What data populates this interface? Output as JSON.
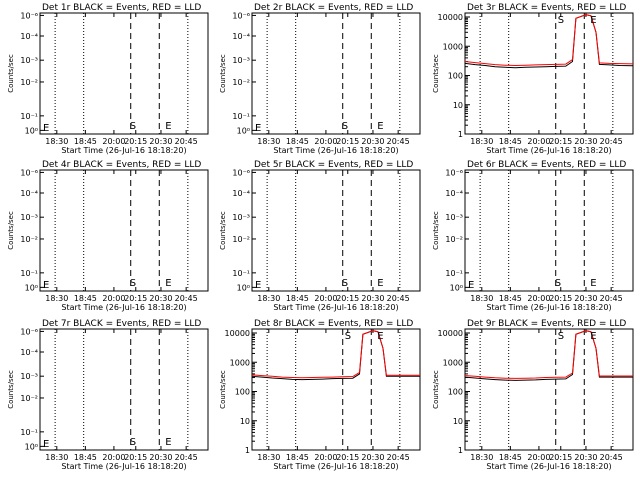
{
  "figure": {
    "panels": [
      {
        "title": "Det 1r BLACK = Events, RED = LLD",
        "state": "empty"
      },
      {
        "title": "Det 2r BLACK = Events, RED = LLD",
        "state": "empty"
      },
      {
        "title": "Det 3r BLACK = Events, RED = LLD",
        "state": "data"
      },
      {
        "title": "Det 4r BLACK = Events, RED = LLD",
        "state": "empty"
      },
      {
        "title": "Det 5r BLACK = Events, RED = LLD",
        "state": "empty"
      },
      {
        "title": "Det 6r BLACK = Events, RED = LLD",
        "state": "empty"
      },
      {
        "title": "Det 7r BLACK = Events, RED = LLD",
        "state": "empty"
      },
      {
        "title": "Det 8r BLACK = Events, RED = LLD",
        "state": "data"
      },
      {
        "title": "Det 9r BLACK = Events, RED = LLD",
        "state": "data"
      }
    ],
    "ylabel": "Counts/sec",
    "xlabel": "Start Time (26-Jul-16 18:18:20)",
    "x_ticks": [
      "18:30",
      "18:45",
      "20:00",
      "20:15",
      "20:30",
      "20:45"
    ],
    "empty_y_ticks": [
      "10⁻⁶",
      "10⁻⁴",
      "10⁻³",
      "10⁻²",
      "10⁻¹",
      "10⁰"
    ],
    "data_y_ticks": [
      "10000",
      "1000",
      "100",
      "10",
      "1"
    ],
    "markers": {
      "start": "S",
      "end": "E"
    },
    "colors": {
      "events": "#000000",
      "lld": "#ff0000",
      "axes": "#000000",
      "background": "#ffffff"
    }
  },
  "chart_data": [
    {
      "panel": "Det 1r",
      "type": "line",
      "ylim": "empty",
      "series": []
    },
    {
      "panel": "Det 2r",
      "type": "line",
      "ylim": "empty",
      "series": []
    },
    {
      "panel": "Det 3r",
      "type": "line",
      "y_scale": "log",
      "ylim": [
        1,
        10000
      ],
      "x_ticks": [
        "18:30",
        "18:45",
        "20:00",
        "20:15",
        "20:30",
        "20:45"
      ],
      "series": [
        {
          "name": "Events",
          "color": "#000000",
          "points": [
            [
              0.0,
              260
            ],
            [
              0.06,
              235
            ],
            [
              0.12,
              220
            ],
            [
              0.18,
              200
            ],
            [
              0.24,
              190
            ],
            [
              0.3,
              185
            ],
            [
              0.36,
              190
            ],
            [
              0.42,
              195
            ],
            [
              0.48,
              200
            ],
            [
              0.54,
              205
            ],
            [
              0.6,
              210
            ],
            [
              0.64,
              300
            ],
            [
              0.66,
              9000
            ],
            [
              0.72,
              12000
            ],
            [
              0.75,
              11000
            ],
            [
              0.78,
              3000
            ],
            [
              0.8,
              240
            ],
            [
              0.86,
              230
            ],
            [
              0.92,
              220
            ],
            [
              1.0,
              215
            ]
          ]
        },
        {
          "name": "LLD",
          "color": "#ff0000",
          "points": [
            [
              0.0,
              300
            ],
            [
              0.06,
              275
            ],
            [
              0.12,
              255
            ],
            [
              0.18,
              235
            ],
            [
              0.24,
              225
            ],
            [
              0.3,
              220
            ],
            [
              0.36,
              225
            ],
            [
              0.42,
              230
            ],
            [
              0.48,
              235
            ],
            [
              0.54,
              240
            ],
            [
              0.6,
              245
            ],
            [
              0.64,
              350
            ],
            [
              0.66,
              9000
            ],
            [
              0.72,
              12000
            ],
            [
              0.75,
              11000
            ],
            [
              0.78,
              3000
            ],
            [
              0.8,
              270
            ],
            [
              0.86,
              260
            ],
            [
              0.92,
              255
            ],
            [
              1.0,
              250
            ]
          ]
        }
      ]
    },
    {
      "panel": "Det 4r",
      "type": "line",
      "ylim": "empty",
      "series": []
    },
    {
      "panel": "Det 5r",
      "type": "line",
      "ylim": "empty",
      "series": []
    },
    {
      "panel": "Det 6r",
      "type": "line",
      "ylim": "empty",
      "series": []
    },
    {
      "panel": "Det 7r",
      "type": "line",
      "ylim": "empty",
      "series": []
    },
    {
      "panel": "Det 8r",
      "type": "line",
      "y_scale": "log",
      "ylim": [
        1,
        10000
      ],
      "x_ticks": [
        "18:30",
        "18:45",
        "20:00",
        "20:15",
        "20:30",
        "20:45"
      ],
      "series": [
        {
          "name": "Events",
          "color": "#000000",
          "points": [
            [
              0.0,
              330
            ],
            [
              0.06,
              310
            ],
            [
              0.12,
              290
            ],
            [
              0.18,
              275
            ],
            [
              0.24,
              260
            ],
            [
              0.3,
              255
            ],
            [
              0.36,
              260
            ],
            [
              0.42,
              265
            ],
            [
              0.48,
              275
            ],
            [
              0.54,
              280
            ],
            [
              0.6,
              285
            ],
            [
              0.64,
              400
            ],
            [
              0.66,
              9000
            ],
            [
              0.72,
              12000
            ],
            [
              0.75,
              11000
            ],
            [
              0.78,
              3000
            ],
            [
              0.8,
              330
            ],
            [
              0.86,
              330
            ],
            [
              0.92,
              330
            ],
            [
              1.0,
              330
            ]
          ]
        },
        {
          "name": "LLD",
          "color": "#ff0000",
          "points": [
            [
              0.0,
              370
            ],
            [
              0.06,
              350
            ],
            [
              0.12,
              330
            ],
            [
              0.18,
              310
            ],
            [
              0.24,
              300
            ],
            [
              0.3,
              295
            ],
            [
              0.36,
              300
            ],
            [
              0.42,
              305
            ],
            [
              0.48,
              310
            ],
            [
              0.54,
              320
            ],
            [
              0.6,
              325
            ],
            [
              0.64,
              450
            ],
            [
              0.66,
              9000
            ],
            [
              0.72,
              12000
            ],
            [
              0.75,
              11000
            ],
            [
              0.78,
              3000
            ],
            [
              0.8,
              360
            ],
            [
              0.86,
              360
            ],
            [
              0.92,
              360
            ],
            [
              1.0,
              360
            ]
          ]
        }
      ]
    },
    {
      "panel": "Det 9r",
      "type": "line",
      "y_scale": "log",
      "ylim": [
        1,
        10000
      ],
      "x_ticks": [
        "18:30",
        "18:45",
        "20:00",
        "20:15",
        "20:30",
        "20:45"
      ],
      "series": [
        {
          "name": "Events",
          "color": "#000000",
          "points": [
            [
              0.0,
              310
            ],
            [
              0.06,
              290
            ],
            [
              0.12,
              270
            ],
            [
              0.18,
              255
            ],
            [
              0.24,
              245
            ],
            [
              0.3,
              240
            ],
            [
              0.36,
              245
            ],
            [
              0.42,
              250
            ],
            [
              0.48,
              260
            ],
            [
              0.54,
              265
            ],
            [
              0.6,
              270
            ],
            [
              0.64,
              380
            ],
            [
              0.66,
              9000
            ],
            [
              0.72,
              12000
            ],
            [
              0.75,
              11000
            ],
            [
              0.78,
              3000
            ],
            [
              0.8,
              310
            ],
            [
              0.86,
              310
            ],
            [
              0.92,
              310
            ],
            [
              1.0,
              310
            ]
          ]
        },
        {
          "name": "LLD",
          "color": "#ff0000",
          "points": [
            [
              0.0,
              350
            ],
            [
              0.06,
              330
            ],
            [
              0.12,
              310
            ],
            [
              0.18,
              295
            ],
            [
              0.24,
              285
            ],
            [
              0.3,
              280
            ],
            [
              0.36,
              285
            ],
            [
              0.42,
              290
            ],
            [
              0.48,
              300
            ],
            [
              0.54,
              305
            ],
            [
              0.6,
              310
            ],
            [
              0.64,
              430
            ],
            [
              0.66,
              9000
            ],
            [
              0.72,
              12000
            ],
            [
              0.75,
              11000
            ],
            [
              0.78,
              3000
            ],
            [
              0.8,
              340
            ],
            [
              0.86,
              340
            ],
            [
              0.92,
              340
            ],
            [
              1.0,
              340
            ]
          ]
        }
      ]
    }
  ]
}
